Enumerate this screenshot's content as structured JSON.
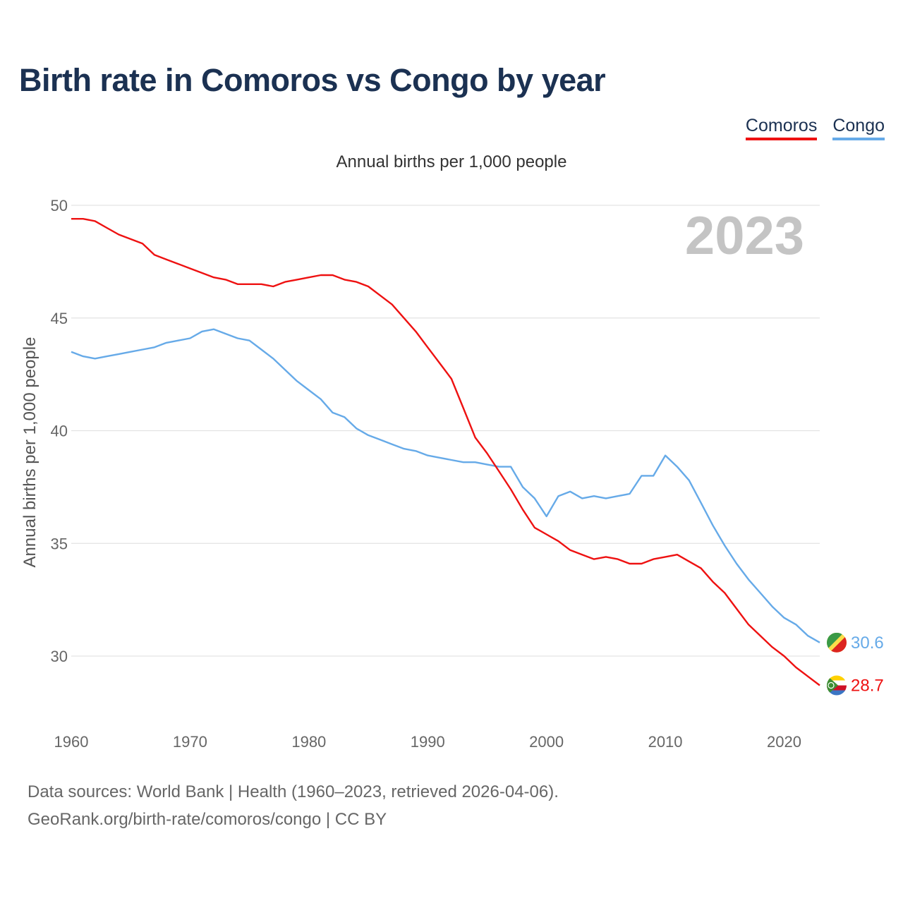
{
  "header": {
    "title": "Birth rate in Comoros vs Congo by year"
  },
  "legend": {
    "items": [
      {
        "label": "Comoros",
        "color": "#ee1111"
      },
      {
        "label": "Congo",
        "color": "#66aae8"
      }
    ]
  },
  "footer": {
    "line1": "Data sources: World Bank | Health (1960–2023, retrieved 2026-04-06).",
    "line2": "GeoRank.org/birth-rate/comoros/congo | CC BY"
  },
  "flags": {
    "comoros": "comoros-flag-icon",
    "congo": "congo-flag-icon"
  },
  "chart_data": {
    "type": "line",
    "title": "Birth rate in Comoros vs Congo by year",
    "subtitle": "Annual births per 1,000 people",
    "ylabel": "Annual births per 1,000 people",
    "xlabel": "",
    "year_display": "2023",
    "xlim": [
      1960,
      2023
    ],
    "ylim": [
      27.5,
      50.5
    ],
    "x_ticks": [
      1960,
      1970,
      1980,
      1990,
      2000,
      2010,
      2020
    ],
    "y_ticks": [
      30,
      35,
      40,
      45,
      50
    ],
    "grid": true,
    "x": [
      1960,
      1961,
      1962,
      1963,
      1964,
      1965,
      1966,
      1967,
      1968,
      1969,
      1970,
      1971,
      1972,
      1973,
      1974,
      1975,
      1976,
      1977,
      1978,
      1979,
      1980,
      1981,
      1982,
      1983,
      1984,
      1985,
      1986,
      1987,
      1988,
      1989,
      1990,
      1991,
      1992,
      1993,
      1994,
      1995,
      1996,
      1997,
      1998,
      1999,
      2000,
      2001,
      2002,
      2003,
      2004,
      2005,
      2006,
      2007,
      2008,
      2009,
      2010,
      2011,
      2012,
      2013,
      2014,
      2015,
      2016,
      2017,
      2018,
      2019,
      2020,
      2021,
      2022,
      2023
    ],
    "series": [
      {
        "name": "Comoros",
        "color": "#ee1111",
        "end_label": "28.7",
        "values": [
          49.4,
          49.4,
          49.3,
          49.0,
          48.7,
          48.5,
          48.3,
          47.8,
          47.6,
          47.4,
          47.2,
          47.0,
          46.8,
          46.7,
          46.5,
          46.5,
          46.5,
          46.4,
          46.6,
          46.7,
          46.8,
          46.9,
          46.9,
          46.7,
          46.6,
          46.4,
          46.0,
          45.6,
          45.0,
          44.4,
          43.7,
          43.0,
          42.3,
          41.0,
          39.7,
          39.0,
          38.2,
          37.4,
          36.5,
          35.7,
          35.4,
          35.1,
          34.7,
          34.5,
          34.3,
          34.4,
          34.3,
          34.1,
          34.1,
          34.3,
          34.4,
          34.5,
          34.2,
          33.9,
          33.3,
          32.8,
          32.1,
          31.4,
          30.9,
          30.4,
          30.0,
          29.5,
          29.1,
          28.7
        ]
      },
      {
        "name": "Congo",
        "color": "#66aae8",
        "end_label": "30.6",
        "values": [
          43.5,
          43.3,
          43.2,
          43.3,
          43.4,
          43.5,
          43.6,
          43.7,
          43.9,
          44.0,
          44.1,
          44.4,
          44.5,
          44.3,
          44.1,
          44.0,
          43.6,
          43.2,
          42.7,
          42.2,
          41.8,
          41.4,
          40.8,
          40.6,
          40.1,
          39.8,
          39.6,
          39.4,
          39.2,
          39.1,
          38.9,
          38.8,
          38.7,
          38.6,
          38.6,
          38.5,
          38.4,
          38.4,
          37.5,
          37.0,
          36.2,
          37.1,
          37.3,
          37.0,
          37.1,
          37.0,
          37.1,
          37.2,
          38.0,
          38.0,
          38.9,
          38.4,
          37.8,
          36.8,
          35.8,
          34.9,
          34.1,
          33.4,
          32.8,
          32.2,
          31.7,
          31.4,
          30.9,
          30.6
        ]
      }
    ]
  }
}
